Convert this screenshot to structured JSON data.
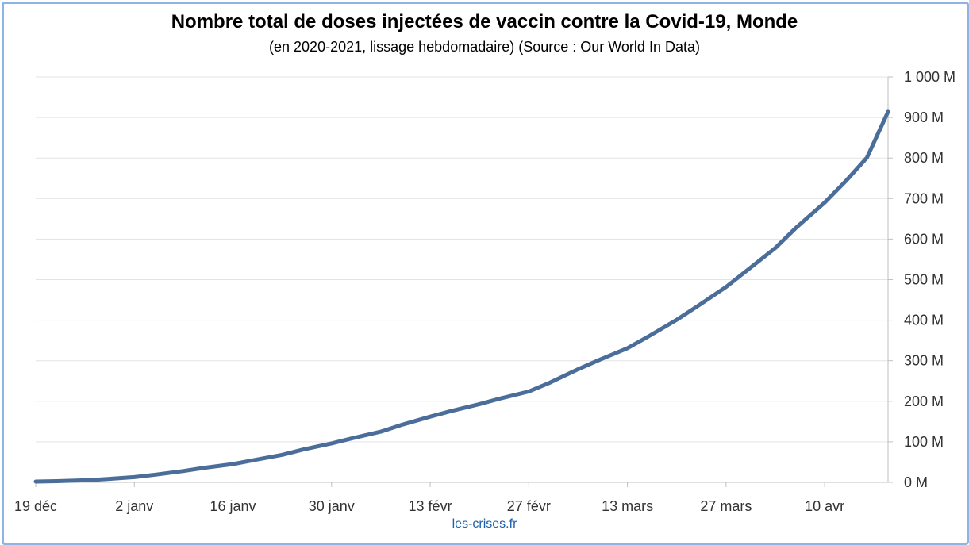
{
  "page": {
    "title": "Nombre total de doses injectées de vaccin contre la Covid-19, Monde",
    "subtitle": "(en 2020-2021, lissage hebdomadaire) (Source : Our World In Data)",
    "source": "les-crises.fr"
  },
  "colors": {
    "line": "#4a6d9a",
    "grid": "#e3e3e3",
    "axis": "#bfbfbf",
    "frame": "#8fb4e3",
    "source_text": "#1f5fa8"
  },
  "chart_data": {
    "type": "line",
    "title": "Nombre total de doses injectées de vaccin contre la Covid-19, Monde",
    "subtitle": "(en 2020-2021, lissage hebdomadaire) (Source : Our World In Data)",
    "xlabel": "",
    "ylabel": "",
    "xlim": [
      "2020-12-19",
      "2021-04-19"
    ],
    "ylim": [
      0,
      1000
    ],
    "y_unit": "M",
    "y_axis_side": "right",
    "grid": "horizontal",
    "legend": "none",
    "x_ticks": [
      {
        "date": "2020-12-19",
        "label": "19 déc"
      },
      {
        "date": "2021-01-02",
        "label": "2 janv"
      },
      {
        "date": "2021-01-16",
        "label": "16 janv"
      },
      {
        "date": "2021-01-30",
        "label": "30 janv"
      },
      {
        "date": "2021-02-13",
        "label": "13 févr"
      },
      {
        "date": "2021-02-27",
        "label": "27 févr"
      },
      {
        "date": "2021-03-13",
        "label": "13 mars"
      },
      {
        "date": "2021-03-27",
        "label": "27 mars"
      },
      {
        "date": "2021-04-10",
        "label": "10 avr"
      }
    ],
    "y_ticks": [
      {
        "value": 0,
        "label": "0 M"
      },
      {
        "value": 100,
        "label": "100 M"
      },
      {
        "value": 200,
        "label": "200 M"
      },
      {
        "value": 300,
        "label": "300 M"
      },
      {
        "value": 400,
        "label": "400 M"
      },
      {
        "value": 500,
        "label": "500 M"
      },
      {
        "value": 600,
        "label": "600 M"
      },
      {
        "value": 700,
        "label": "700 M"
      },
      {
        "value": 800,
        "label": "800 M"
      },
      {
        "value": 900,
        "label": "900 M"
      },
      {
        "value": 1000,
        "label": "1 000 M"
      }
    ],
    "series": [
      {
        "x": [
          "2020-12-19",
          "2020-12-22",
          "2020-12-26",
          "2020-12-29",
          "2021-01-02",
          "2021-01-05",
          "2021-01-09",
          "2021-01-12",
          "2021-01-16",
          "2021-01-19",
          "2021-01-23",
          "2021-01-26",
          "2021-01-30",
          "2021-02-02",
          "2021-02-06",
          "2021-02-09",
          "2021-02-13",
          "2021-02-16",
          "2021-02-20",
          "2021-02-23",
          "2021-02-27",
          "2021-03-02",
          "2021-03-06",
          "2021-03-09",
          "2021-03-13",
          "2021-03-16",
          "2021-03-20",
          "2021-03-23",
          "2021-03-27",
          "2021-03-30",
          "2021-04-03",
          "2021-04-06",
          "2021-04-10",
          "2021-04-13",
          "2021-04-16",
          "2021-04-19"
        ],
        "values": [
          2,
          3,
          5,
          8,
          13,
          19,
          28,
          36,
          45,
          55,
          68,
          81,
          96,
          109,
          125,
          142,
          162,
          176,
          193,
          207,
          224,
          246,
          279,
          302,
          331,
          360,
          401,
          435,
          482,
          523,
          578,
          629,
          690,
          743,
          801,
          914
        ]
      }
    ]
  }
}
